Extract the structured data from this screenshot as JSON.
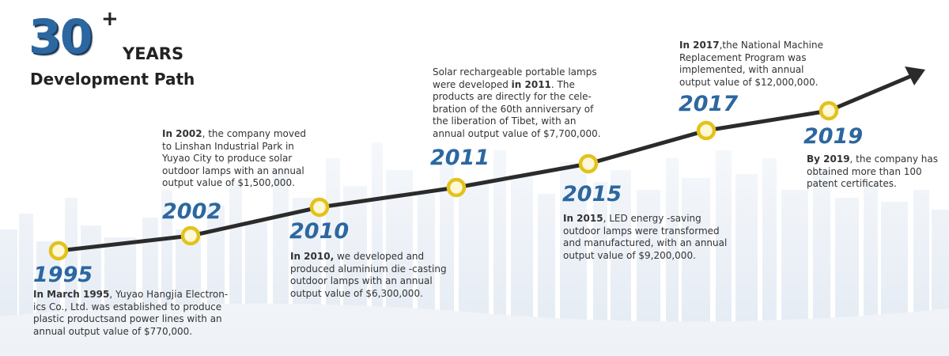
{
  "header": {
    "number": "30",
    "plus": "+",
    "years": "YEARS",
    "subtitle": "Development Path"
  },
  "colors": {
    "accent_blue": "#2c67a0",
    "line": "#2b2b2b",
    "node_ring": "#e3c21a",
    "node_fill": "#fff8d6"
  },
  "milestones": [
    {
      "year": "1995",
      "lead": "In March 1995",
      "text": ", Yuyao Hangjia Electron-\nics Co., Ltd. was established to produce\nplastic productsand power lines with an\nannual output value of $770,000."
    },
    {
      "year": "2002",
      "lead": "In 2002",
      "text": ", the company moved\nto Linshan Industrial Park in\nYuyao City to produce solar\noutdoor lamps with an annual\noutput value of $1,500,000."
    },
    {
      "year": "2010",
      "lead": "In 2010,",
      "text": "   we developed and\nproduced aluminium die -casting\noutdoor lamps with an annual\noutput value of $6,300,000."
    },
    {
      "year": "2011",
      "lead": "",
      "text": "Solar rechargeable portable lamps\nwere developed in 2011. The\nproducts are directly for the cele-\nbration of the 60th anniversary of\nthe liberation of Tibet, with an\nannual output value of $7,700,000."
    },
    {
      "year": "2015",
      "lead": "In 2015",
      "text": ", LED energy -saving\noutdoor lamps were transformed\nand manufactured, with an annual\noutput value of $9,200,000."
    },
    {
      "year": "2017",
      "lead": "In 2017",
      "text": ",the National Machine\nReplacement Program was\nimplemented, with annual\noutput value of $12,000,000."
    },
    {
      "year": "2019",
      "lead": "By 2019",
      "text": ", the company has\nobtained more than 100\npatent certificates."
    }
  ]
}
